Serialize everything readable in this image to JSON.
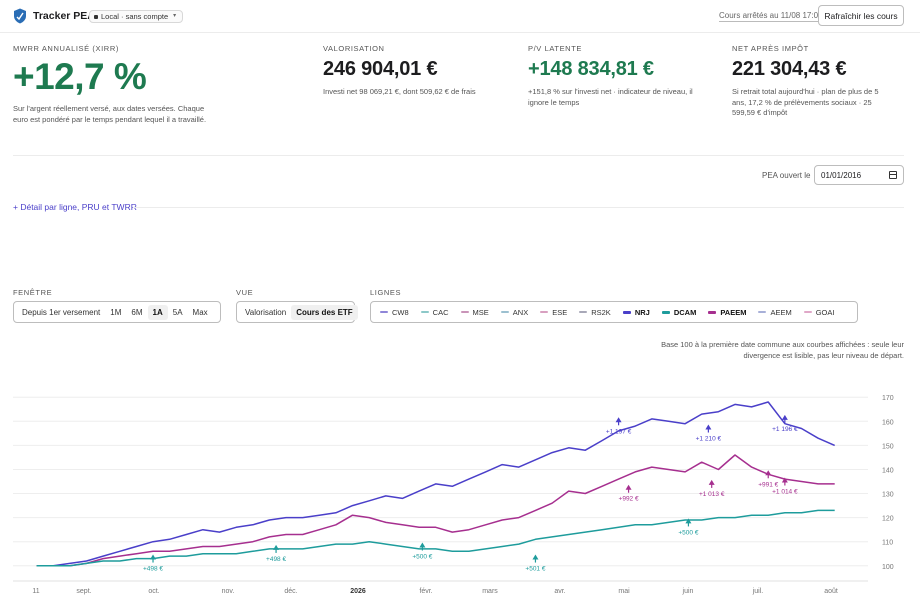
{
  "header": {
    "app_title": "Tracker PEA",
    "mode": "Local · sans compte",
    "quotes_info": "Cours arrêtés au 11/08 17:07",
    "refresh_label": "Rafraîchir les cours"
  },
  "kpis": {
    "mwrr": {
      "label": "MWRR annualisé (XIRR)",
      "value": "+12,7 %",
      "note": "Sur l'argent réellement versé, aux dates versées. Chaque euro est pondéré par le temps pendant lequel il a travaillé."
    },
    "valuation": {
      "label": "Valorisation",
      "value": "246 904,01 €",
      "note": "Investi net 98 069,21 €, dont 509,62 € de frais"
    },
    "unrealized": {
      "label": "P/V latente",
      "value": "+148 834,81 €",
      "note": "+151,8 % sur l'investi net · indicateur de niveau, il ignore le temps"
    },
    "net_after_tax": {
      "label": "Net après impôt",
      "value": "221 304,43 €",
      "note": "Si retrait total aujourd'hui · plan de plus de 5 ans, 17,2 % de prélèvements sociaux · 25 599,59 € d'impôt"
    }
  },
  "pea": {
    "opened_label": "PEA ouvert le",
    "opened_value": "01/01/2016"
  },
  "detail_link": "+ Détail par ligne, PRU et TWRR",
  "controls": {
    "window": {
      "label": "Fenêtre",
      "options": [
        "Depuis 1er versement",
        "1M",
        "6M",
        "1A",
        "5A",
        "Max"
      ],
      "active": "1A"
    },
    "view": {
      "label": "Vue",
      "options": [
        "Valorisation",
        "Cours des ETF"
      ],
      "active": "Cours des ETF"
    },
    "lines": {
      "label": "Lignes",
      "items": [
        {
          "name": "CW8",
          "color": "#8f86d8",
          "on": false
        },
        {
          "name": "CAC",
          "color": "#8cc8c8",
          "on": false
        },
        {
          "name": "MSE",
          "color": "#c994b8",
          "on": false
        },
        {
          "name": "ANX",
          "color": "#9cc0d0",
          "on": false
        },
        {
          "name": "ESE",
          "color": "#d8a0c0",
          "on": false
        },
        {
          "name": "RS2K",
          "color": "#a8a8b8",
          "on": false
        },
        {
          "name": "NRJ",
          "color": "#4a3fc9",
          "on": true
        },
        {
          "name": "DCAM",
          "color": "#1e9c9c",
          "on": true
        },
        {
          "name": "PAEEM",
          "color": "#a62f8f",
          "on": true
        },
        {
          "name": "AEEM",
          "color": "#a8b0d8",
          "on": false
        },
        {
          "name": "GOAI",
          "color": "#e0a8c8",
          "on": false
        }
      ]
    }
  },
  "chart_note": "Base 100 à la première date commune aux courbes affichées : seule leur divergence est lisible, pas leur niveau de départ.",
  "chart_data": {
    "type": "line",
    "x_ticks": [
      "11",
      "sept.",
      "oct.",
      "nov.",
      "déc.",
      "2026",
      "févr.",
      "mars",
      "avr.",
      "mai",
      "juin",
      "juil.",
      "août"
    ],
    "y_ticks": [
      100,
      110,
      120,
      130,
      140,
      150,
      160,
      170
    ],
    "ylim": [
      97,
      173
    ],
    "grid": true,
    "series": [
      {
        "name": "NRJ",
        "color": "#4a3fc9",
        "x": [
          0,
          0.5,
          1,
          1.5,
          2,
          2.5,
          3,
          3.5,
          4,
          4.5,
          5,
          5.5,
          6,
          6.5,
          7,
          7.5,
          8,
          8.5,
          9,
          9.5,
          10,
          10.5,
          11,
          11.5,
          12,
          12.5,
          13,
          13.5,
          14,
          14.5,
          15,
          15.5,
          16,
          16.5,
          17,
          17.5,
          18,
          18.5,
          19,
          19.5,
          20,
          20.5,
          21,
          21.5,
          22,
          22.5,
          23,
          23.5,
          24
        ],
        "values": [
          100,
          100,
          101,
          102,
          104,
          106,
          108,
          110,
          111,
          113,
          115,
          114,
          116,
          117,
          119,
          120,
          120,
          121,
          122,
          125,
          127,
          129,
          128,
          131,
          134,
          133,
          136,
          139,
          142,
          141,
          144,
          147,
          149,
          148,
          152,
          156,
          158,
          161,
          160,
          159,
          163,
          164,
          167,
          166,
          168,
          159,
          157,
          153,
          150
        ]
      },
      {
        "name": "PAEEM",
        "color": "#a62f8f",
        "x": [
          0,
          0.5,
          1,
          1.5,
          2,
          2.5,
          3,
          3.5,
          4,
          4.5,
          5,
          5.5,
          6,
          6.5,
          7,
          7.5,
          8,
          8.5,
          9,
          9.5,
          10,
          10.5,
          11,
          11.5,
          12,
          12.5,
          13,
          13.5,
          14,
          14.5,
          15,
          15.5,
          16,
          16.5,
          17,
          17.5,
          18,
          18.5,
          19,
          19.5,
          20,
          20.5,
          21,
          21.5,
          22,
          22.5,
          23,
          23.5,
          24
        ],
        "values": [
          100,
          100,
          100,
          101,
          103,
          104,
          105,
          106,
          106,
          107,
          108,
          108,
          109,
          110,
          112,
          113,
          113,
          115,
          117,
          121,
          120,
          118,
          117,
          116,
          116,
          114,
          115,
          117,
          119,
          120,
          123,
          126,
          131,
          130,
          133,
          136,
          139,
          141,
          140,
          139,
          143,
          140,
          146,
          141,
          138,
          136,
          135,
          134,
          134
        ]
      },
      {
        "name": "DCAM",
        "color": "#1e9c9c",
        "x": [
          0,
          0.5,
          1,
          1.5,
          2,
          2.5,
          3,
          3.5,
          4,
          4.5,
          5,
          5.5,
          6,
          6.5,
          7,
          7.5,
          8,
          8.5,
          9,
          9.5,
          10,
          10.5,
          11,
          11.5,
          12,
          12.5,
          13,
          13.5,
          14,
          14.5,
          15,
          15.5,
          16,
          16.5,
          17,
          17.5,
          18,
          18.5,
          19,
          19.5,
          20,
          20.5,
          21,
          21.5,
          22,
          22.5,
          23,
          23.5,
          24
        ],
        "values": [
          100,
          100,
          100,
          101,
          102,
          102,
          103,
          103,
          104,
          104,
          105,
          105,
          105,
          106,
          107,
          107,
          107,
          108,
          109,
          109,
          110,
          109,
          108,
          107,
          107,
          106,
          106,
          107,
          108,
          109,
          111,
          112,
          113,
          114,
          115,
          116,
          117,
          117,
          118,
          119,
          119,
          120,
          120,
          121,
          121,
          122,
          122,
          123,
          123
        ]
      }
    ],
    "annotations": [
      {
        "label": "+498 €",
        "x": 3.5,
        "y": 103,
        "series": "DCAM"
      },
      {
        "label": "+498 €",
        "x": 7.2,
        "y": 107,
        "series": "DCAM"
      },
      {
        "label": "+500 €",
        "x": 11.6,
        "y": 108,
        "series": "DCAM"
      },
      {
        "label": "+501 €",
        "x": 15.0,
        "y": 103,
        "series": "DCAM"
      },
      {
        "label": "+500 €",
        "x": 19.6,
        "y": 118,
        "series": "DCAM"
      },
      {
        "label": "+1 197 €",
        "x": 17.5,
        "y": 160,
        "series": "NRJ"
      },
      {
        "label": "+1 210 €",
        "x": 20.2,
        "y": 157,
        "series": "NRJ"
      },
      {
        "label": "+1 196 €",
        "x": 22.5,
        "y": 161,
        "series": "NRJ"
      },
      {
        "label": "+992 €",
        "x": 17.8,
        "y": 132,
        "series": "PAEEM"
      },
      {
        "label": "+1 013 €",
        "x": 20.3,
        "y": 134,
        "series": "PAEEM"
      },
      {
        "label": "+991 €",
        "x": 22.0,
        "y": 138,
        "series": "PAEEM"
      },
      {
        "label": "+1 014 €",
        "x": 22.5,
        "y": 135,
        "series": "PAEEM"
      }
    ],
    "xlim": [
      -0.5,
      25
    ]
  }
}
